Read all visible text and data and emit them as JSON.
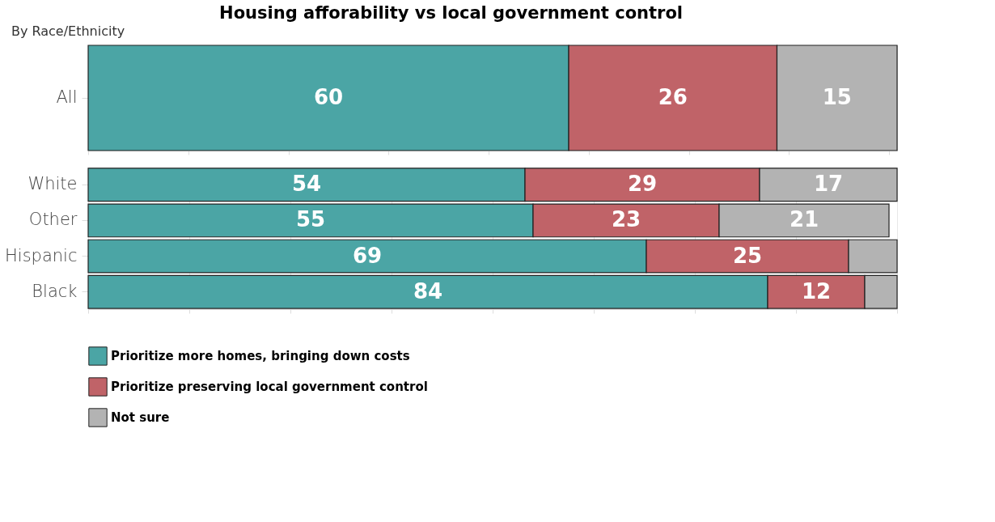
{
  "chart_data": [
    {
      "type": "bar",
      "title": "Housing afforability vs local government control",
      "subtitle": "By Race/Ethnicity",
      "orientation": "horizontal",
      "stacked": true,
      "categories": [
        "All"
      ],
      "series": [
        {
          "name": "Prioritize more homes, bringing down costs",
          "color": "#4ba5a5",
          "values": [
            60
          ],
          "value_labels": [
            "60"
          ]
        },
        {
          "name": "Prioritize preserving local government control",
          "color": "#c06368",
          "values": [
            26
          ],
          "value_labels": [
            "26"
          ]
        },
        {
          "name": "Not sure",
          "color": "#b3b3b3",
          "values": [
            15
          ],
          "value_labels": [
            "15"
          ]
        }
      ],
      "xlim": [
        0,
        101
      ],
      "xticks": [
        {
          "value": 0,
          "label": null
        },
        {
          "value": 12.5,
          "label": null
        },
        {
          "value": 25,
          "label": null
        },
        {
          "value": 37.5,
          "label": null
        },
        {
          "value": 50,
          "label": null
        },
        {
          "value": 62.5,
          "label": null
        },
        {
          "value": 75,
          "label": null
        },
        {
          "value": 87.5,
          "label": null
        },
        {
          "value": 100,
          "label": null
        }
      ],
      "grid": "x",
      "tick_labels": "y",
      "legend": "bottom"
    },
    {
      "type": "bar",
      "orientation": "horizontal",
      "stacked": true,
      "categories": [
        "White",
        "Other",
        "Hispanic",
        "Black"
      ],
      "series": [
        {
          "name": "Prioritize more homes, bringing down costs",
          "color": "#4ba5a5",
          "values": [
            54,
            55,
            69,
            84
          ],
          "value_labels": [
            "54",
            "55",
            "69",
            "84"
          ]
        },
        {
          "name": "Prioritize preserving local government control",
          "color": "#c06368",
          "values": [
            29,
            23,
            25,
            12
          ],
          "value_labels": [
            "29",
            "23",
            "25",
            "12"
          ]
        },
        {
          "name": "Not sure",
          "color": "#b3b3b3",
          "values": [
            17,
            21,
            6,
            4
          ],
          "value_labels": [
            "17",
            "21",
            null,
            null
          ]
        }
      ],
      "xlim": [
        0,
        100
      ],
      "xticks": [
        {
          "value": 0,
          "label": null
        },
        {
          "value": 12.5,
          "label": null
        },
        {
          "value": 25,
          "label": null
        },
        {
          "value": 37.5,
          "label": null
        },
        {
          "value": 50,
          "label": null
        },
        {
          "value": 62.5,
          "label": null
        },
        {
          "value": 75,
          "label": null
        },
        {
          "value": 87.5,
          "label": null
        },
        {
          "value": 100,
          "label": null
        }
      ],
      "grid": "x",
      "tick_labels": "y",
      "legend": "bottom"
    }
  ]
}
